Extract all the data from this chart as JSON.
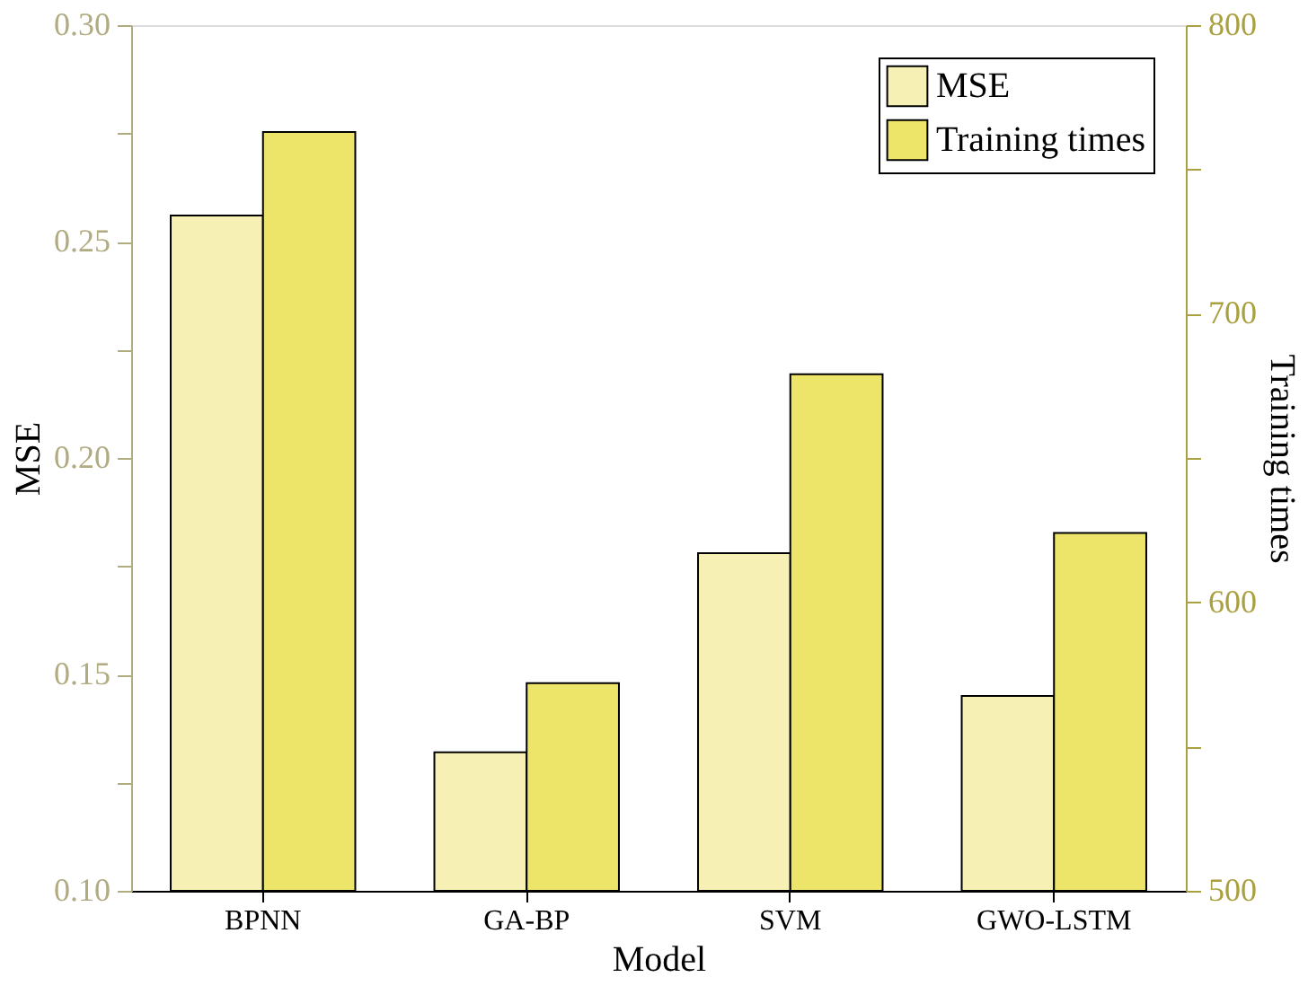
{
  "chart_data": {
    "type": "bar",
    "xlabel": "Model",
    "ylabel": "MSE",
    "y2label": "Training times",
    "categories": [
      "BPNN",
      "GA-BP",
      "SVM",
      "GWO-LSTM"
    ],
    "series": [
      {
        "name": "MSE",
        "color": "#f7f0b4",
        "values": [
          0.256,
          0.132,
          0.178,
          0.145
        ]
      },
      {
        "name": "Training times",
        "color": "#ede46a",
        "axis": "y2",
        "values": [
          763,
          572,
          679,
          624
        ]
      }
    ],
    "ylim": [
      0.1,
      0.3
    ],
    "yticks": [
      {
        "value": 0.1,
        "label": "0.10"
      },
      {
        "value": 0.125,
        "label": null
      },
      0.15,
      {
        "value": 0.175,
        "label": null
      },
      {
        "value": 0.2,
        "label": "0.20"
      },
      {
        "value": 0.225,
        "label": null
      },
      0.25,
      {
        "value": 0.275,
        "label": null
      },
      {
        "value": 0.3,
        "label": "0.30"
      }
    ],
    "y2lim": [
      500,
      800
    ],
    "y2ticks": [
      500,
      {
        "value": 550,
        "label": null
      },
      600,
      {
        "value": 650,
        "label": null
      },
      700,
      {
        "value": 750,
        "label": null
      },
      800
    ],
    "grid": false,
    "legend": "top right"
  }
}
